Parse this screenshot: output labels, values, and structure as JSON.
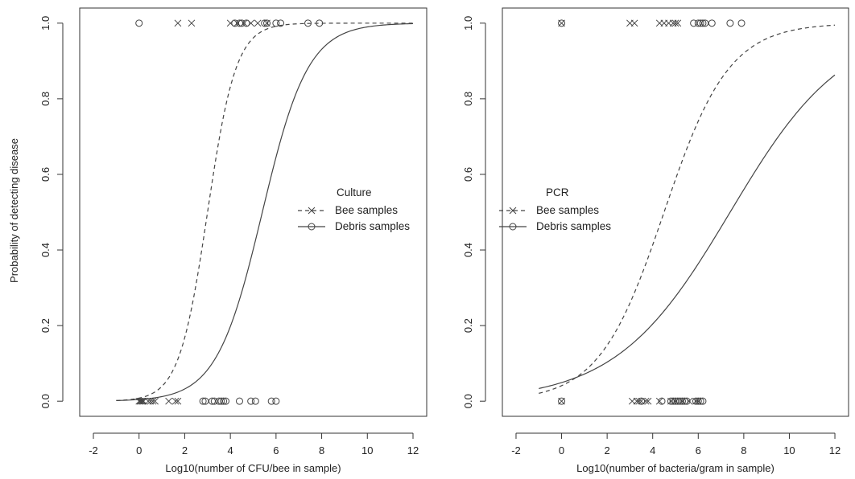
{
  "ylabel": "Probability of detecting disease",
  "chart_data": [
    {
      "type": "scatter",
      "title": "",
      "xlabel": "Log10(number of CFU/bee in sample)",
      "ylabel": "Probability of detecting disease",
      "xlim": [
        -2.6,
        12.6
      ],
      "ylim": [
        -0.04,
        1.04
      ],
      "xticks": [
        -2,
        0,
        2,
        4,
        6,
        8,
        10,
        12
      ],
      "yticks": [
        0.0,
        0.2,
        0.4,
        0.6,
        0.8,
        1.0
      ],
      "grid": false,
      "legend": {
        "title": "Culture",
        "placement": "center-right",
        "entries": [
          "Bee samples",
          "Debris samples"
        ]
      },
      "series": [
        {
          "name": "Bee samples",
          "marker": "cross",
          "line": "dashed",
          "curve": {
            "intercept": 3.0,
            "slope": 1.6,
            "x_range": [
              -1,
              12
            ]
          },
          "points_y1": [
            1.7,
            2.3,
            4.0,
            4.3,
            4.6,
            4.9,
            5.2,
            5.6
          ],
          "points_y0": [
            0.0,
            0.05,
            0.1,
            0.15,
            0.2,
            0.4,
            0.5,
            0.6,
            0.7,
            1.3,
            1.6,
            1.7
          ]
        },
        {
          "name": "Debris samples",
          "marker": "circle",
          "line": "solid",
          "curve": {
            "intercept": 5.4,
            "slope": 1.0,
            "x_range": [
              -1,
              12
            ]
          },
          "points_y1": [
            0.0,
            4.2,
            4.4,
            4.5,
            4.7,
            5.5,
            5.6,
            6.0,
            6.2,
            7.4,
            7.9
          ],
          "points_y0": [
            2.8,
            2.9,
            3.2,
            3.3,
            3.5,
            3.6,
            3.7,
            3.8,
            4.4,
            4.9,
            5.1,
            5.8,
            6.0
          ]
        }
      ]
    },
    {
      "type": "scatter",
      "title": "",
      "xlabel": "Log10(number of bacteria/gram in sample)",
      "ylabel": "",
      "xlim": [
        -2.6,
        12.6
      ],
      "ylim": [
        -0.04,
        1.04
      ],
      "xticks": [
        -2,
        0,
        2,
        4,
        6,
        8,
        10,
        12
      ],
      "yticks": [
        0.0,
        0.2,
        0.4,
        0.6,
        0.8,
        1.0
      ],
      "grid": false,
      "legend": {
        "title": "PCR",
        "placement": "center-left",
        "entries": [
          "Bee samples",
          "Debris samples"
        ]
      },
      "series": [
        {
          "name": "Bee samples",
          "marker": "cross",
          "line": "dashed",
          "curve": {
            "intercept": 4.5,
            "slope": 0.7,
            "x_range": [
              -1,
              12
            ]
          },
          "points_y1": [
            0.0,
            3.0,
            3.2,
            4.3,
            4.5,
            4.7,
            4.9,
            5.0,
            5.1
          ],
          "points_y0": [
            0.0,
            3.1,
            3.3,
            3.4,
            3.5,
            3.7,
            3.8,
            4.3,
            4.8,
            5.0,
            5.3,
            5.6,
            5.9,
            6.0
          ]
        },
        {
          "name": "Debris samples",
          "marker": "circle",
          "line": "solid",
          "curve": {
            "intercept": 7.4,
            "slope": 0.4,
            "x_range": [
              -1,
              12
            ]
          },
          "points_y1": [
            0.0,
            5.8,
            6.0,
            6.1,
            6.2,
            6.3,
            6.6,
            7.4,
            7.9
          ],
          "points_y0": [
            0.0,
            3.5,
            4.4,
            4.8,
            4.9,
            5.0,
            5.1,
            5.2,
            5.3,
            5.4,
            5.5,
            5.9,
            6.0,
            6.1,
            6.2
          ]
        }
      ]
    }
  ]
}
